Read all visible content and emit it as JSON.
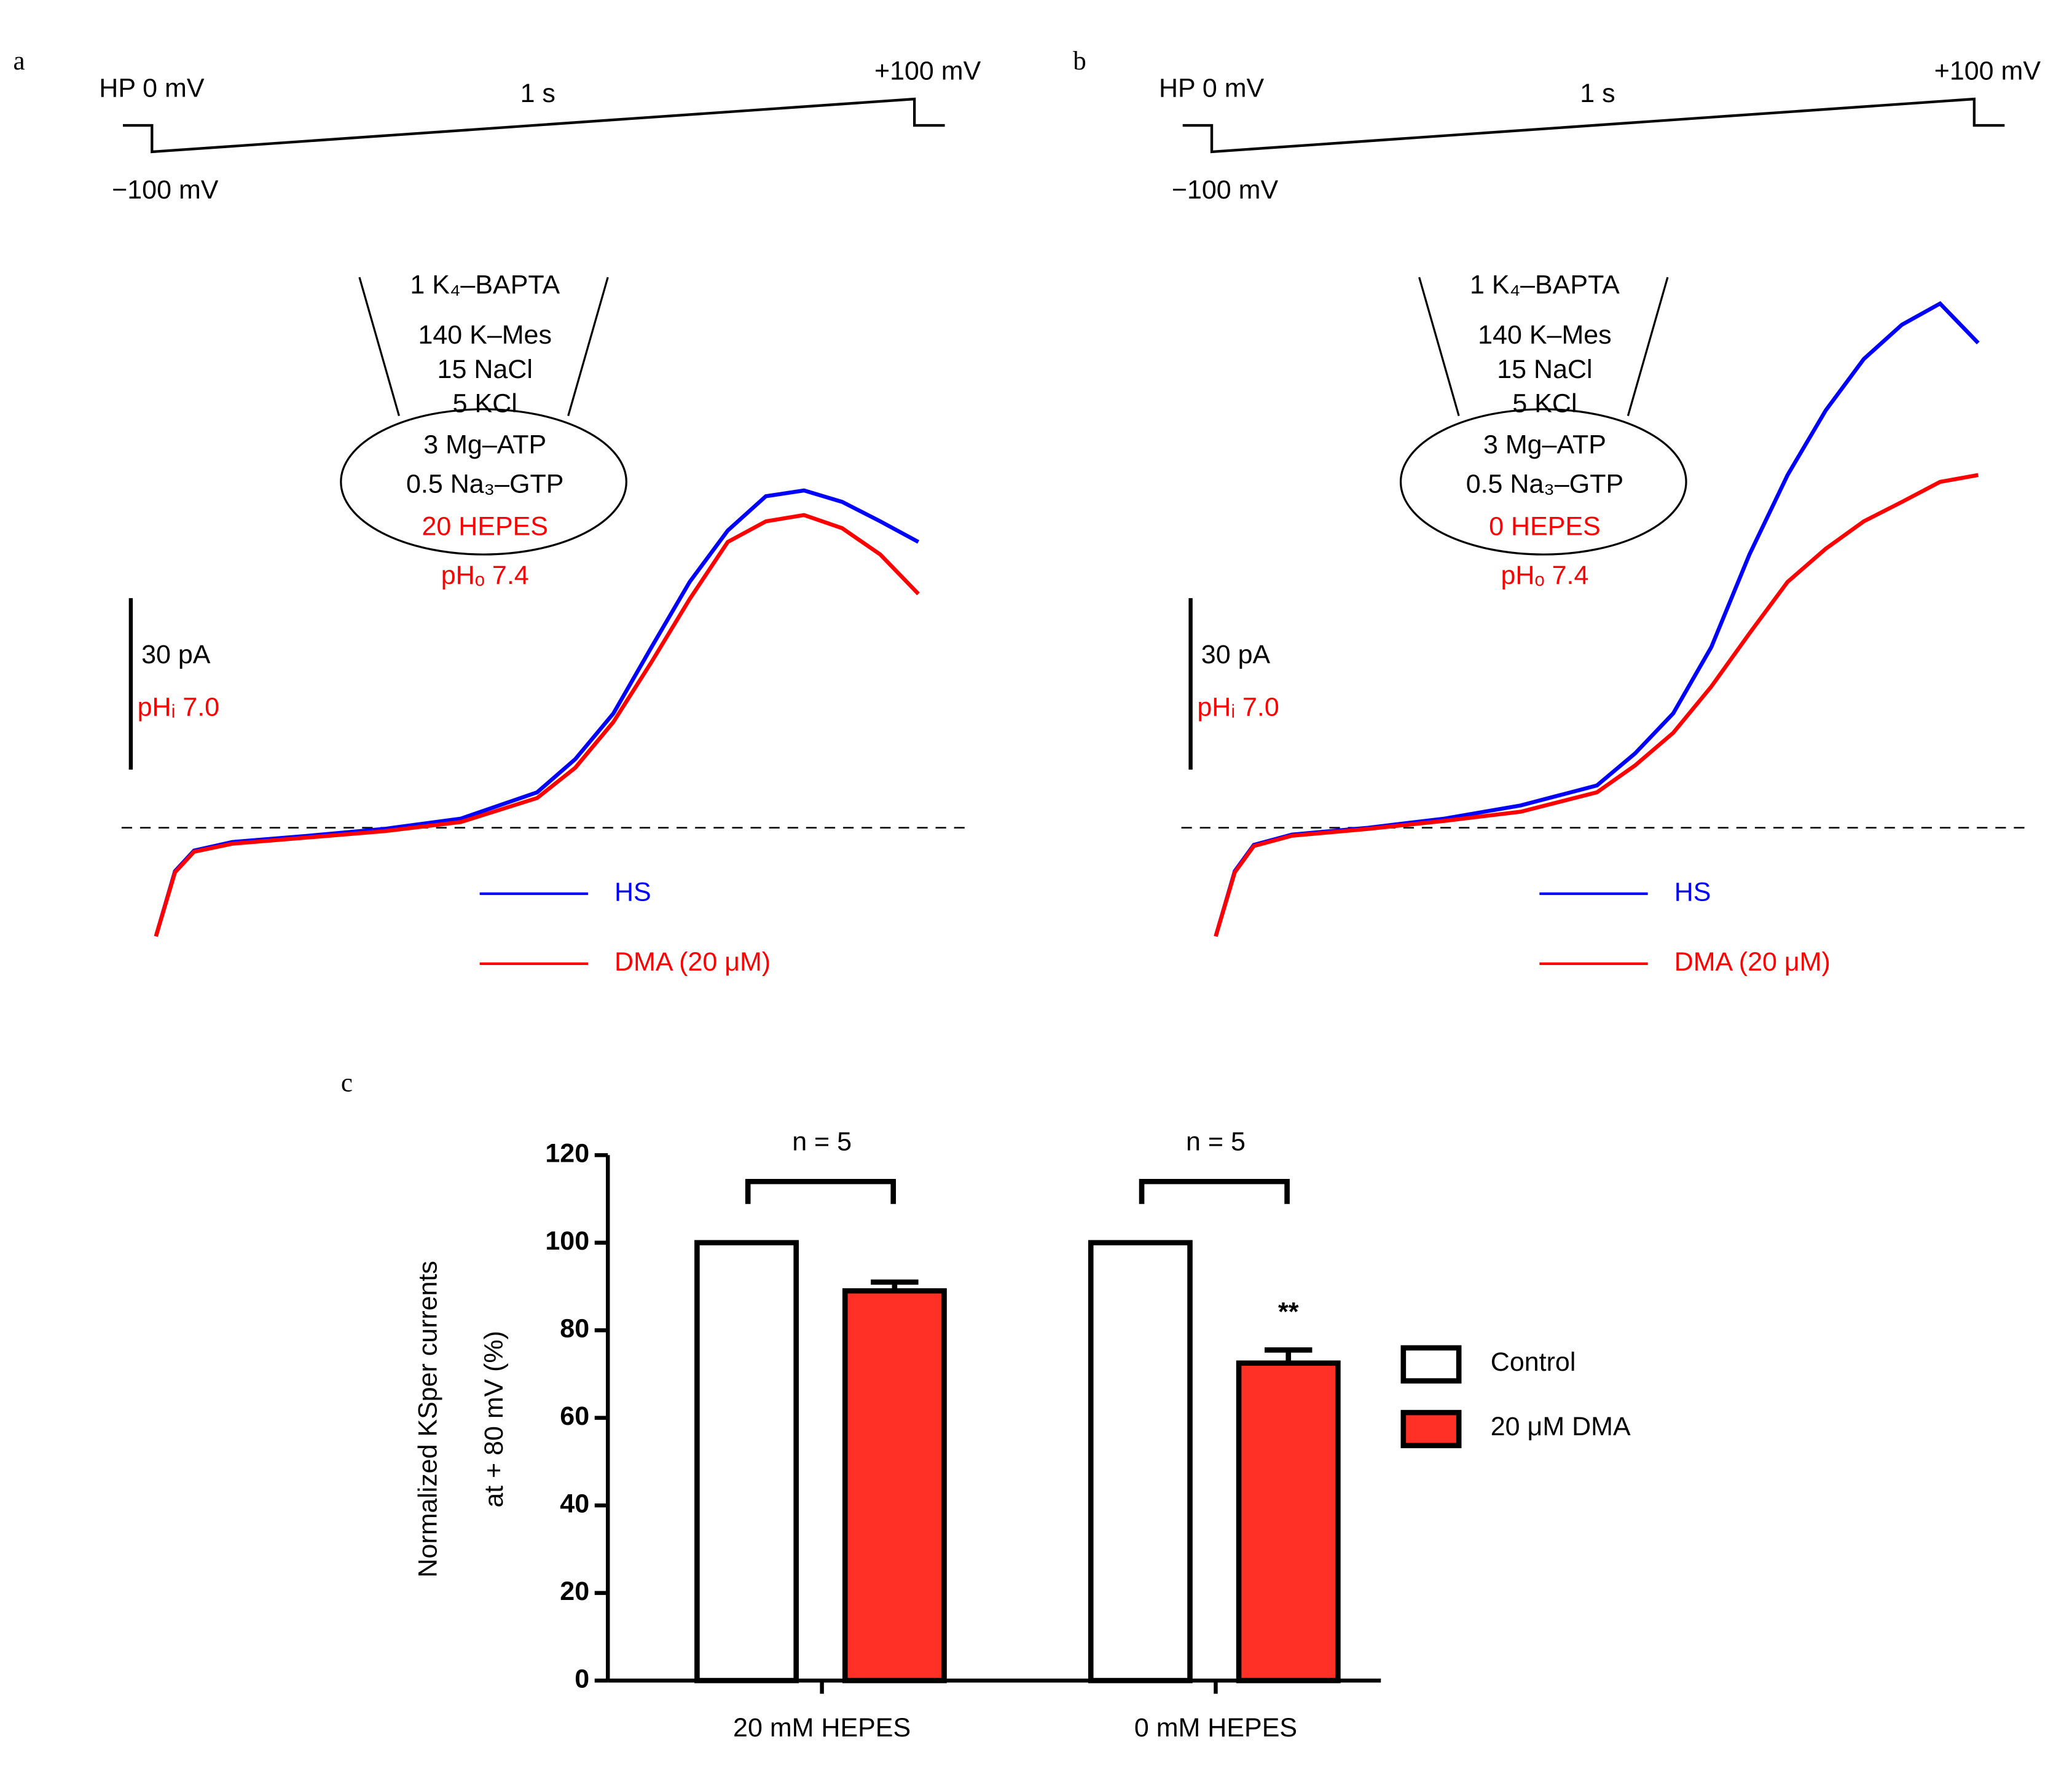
{
  "chart_data": [
    {
      "type": "line",
      "panel": "a",
      "protocol": {
        "holding": "HP 0 mV",
        "duration": "1 s",
        "end": "+100 mV",
        "start": "−100 mV"
      },
      "pipette": [
        "1 K₄–BAPTA",
        "140 K–Mes",
        "15 NaCl",
        "5  KCl",
        "3 Mg–ATP",
        "0.5 Na₃–GTP",
        "20 HEPES"
      ],
      "ph_o": "pHₒ 7.4",
      "ph_i": "pHᵢ 7.0",
      "scale_bar": {
        "value": 30,
        "label": "30 pA"
      },
      "x": [
        -100,
        -95,
        -90,
        -80,
        -60,
        -40,
        -20,
        0,
        10,
        20,
        30,
        40,
        50,
        60,
        70,
        80,
        90,
        100
      ],
      "series": [
        {
          "name": "HS",
          "color": "#0000ff",
          "values": [
            -19,
            -7.6,
            -4,
            -2.5,
            -1.4,
            -0.2,
            1.6,
            6.2,
            12,
            20,
            31.6,
            43,
            52,
            58,
            59,
            57,
            53.6,
            50
          ]
        },
        {
          "name": "DMA (20 μM)",
          "color": "#ff0000",
          "values": [
            -19,
            -7.8,
            -4.2,
            -2.8,
            -1.7,
            -0.6,
            1,
            5.2,
            10.5,
            18.5,
            29,
            40,
            50,
            53.6,
            54.7,
            52.4,
            47.8,
            40.9
          ]
        }
      ]
    },
    {
      "type": "line",
      "panel": "b",
      "protocol": {
        "holding": "HP 0 mV",
        "duration": "1 s",
        "end": "+100 mV",
        "start": "−100 mV"
      },
      "pipette": [
        "1 K₄–BAPTA",
        "140 K–Mes",
        "15 NaCl",
        "5  KCl",
        "3 Mg–ATP",
        "0.5 Na₃–GTP",
        "0 HEPES"
      ],
      "ph_o": "pHₒ 7.4",
      "ph_i": "pHᵢ 7.0",
      "scale_bar": {
        "value": 30,
        "label": "30 pA"
      },
      "x": [
        -100,
        -95,
        -90,
        -80,
        -60,
        -40,
        -20,
        0,
        10,
        20,
        30,
        40,
        50,
        60,
        70,
        80,
        90,
        100
      ],
      "series": [
        {
          "name": "HS",
          "color": "#0000ff",
          "values": [
            -19,
            -7.6,
            -3,
            -1.2,
            0,
            1.6,
            3.9,
            7.4,
            13,
            20,
            31.6,
            47.8,
            61.7,
            73,
            82,
            88,
            91.7,
            84.8
          ]
        },
        {
          "name": "DMA (20 μM)",
          "color": "#ff0000",
          "values": [
            -19,
            -7.8,
            -3.2,
            -1.4,
            -0.2,
            1.2,
            2.8,
            6.2,
            10.9,
            16.6,
            24.7,
            34,
            43,
            48.8,
            53.6,
            57,
            60.5,
            61.7
          ]
        }
      ]
    },
    {
      "type": "bar",
      "panel": "c",
      "ylabel": [
        "Normalized KSper currents",
        "at + 80 mV (%)"
      ],
      "categories": [
        "20 mM HEPES",
        "0 mM HEPES"
      ],
      "series": [
        {
          "name": "Control",
          "color": "#ffffff",
          "values": [
            100,
            100
          ]
        },
        {
          "name": "20 μM DMA",
          "color": "#ff3026",
          "values": [
            89,
            72.5
          ],
          "errors": [
            2,
            3
          ]
        }
      ],
      "ylim": [
        0,
        120
      ],
      "yticks": [
        0,
        20,
        40,
        60,
        80,
        100,
        120
      ],
      "annotations": [
        "n = 5",
        "n = 5",
        "**"
      ]
    }
  ]
}
